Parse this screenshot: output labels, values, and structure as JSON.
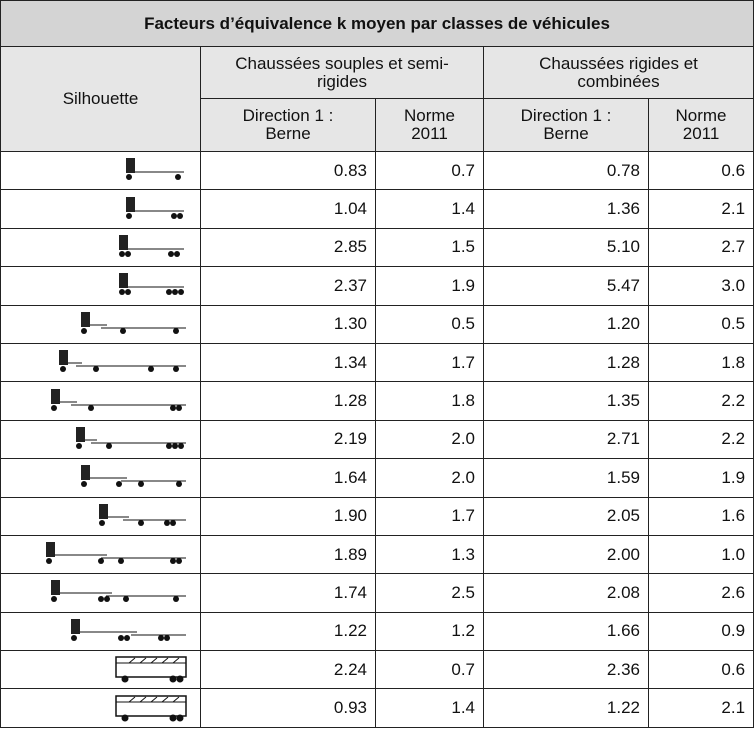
{
  "header": {
    "title": "Facteurs d’équivalence k moyen par classes de véhicules",
    "silhouette": "Silhouette",
    "groups": [
      "Chaussées souples et semi-rigides",
      "Chaussées rigides et combinées"
    ],
    "subheaders": [
      "Direction 1 : Berne",
      "Norme 2011",
      "Direction 1 : Berne",
      "Norme 2011"
    ]
  },
  "table": {
    "rows": [
      [
        "0.83",
        "0.7",
        "0.78",
        "0.6"
      ],
      [
        "1.04",
        "1.4",
        "1.36",
        "2.1"
      ],
      [
        "2.85",
        "1.5",
        "5.10",
        "2.7"
      ],
      [
        "2.37",
        "1.9",
        "5.47",
        "3.0"
      ],
      [
        "1.30",
        "0.5",
        "1.20",
        "0.5"
      ],
      [
        "1.34",
        "1.7",
        "1.28",
        "1.8"
      ],
      [
        "1.28",
        "1.8",
        "1.35",
        "2.2"
      ],
      [
        "2.19",
        "2.0",
        "2.71",
        "2.2"
      ],
      [
        "1.64",
        "2.0",
        "1.59",
        "1.9"
      ],
      [
        "1.90",
        "1.7",
        "2.05",
        "1.6"
      ],
      [
        "1.89",
        "1.3",
        "2.00",
        "1.0"
      ],
      [
        "1.74",
        "2.5",
        "2.08",
        "2.6"
      ],
      [
        "1.22",
        "1.2",
        "1.66",
        "0.9"
      ],
      [
        "2.24",
        "0.7",
        "2.36",
        "0.6"
      ],
      [
        "0.93",
        "1.4",
        "1.22",
        "2.1"
      ]
    ]
  }
}
